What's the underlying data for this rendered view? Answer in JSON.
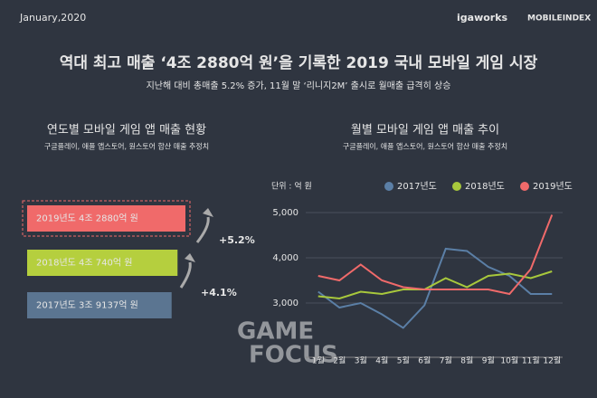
{
  "header": {
    "date": "January,2020",
    "logo_left": "igaworks",
    "logo_right": "MOBILEINDEX",
    "title": "역대 최고 매출 ‘4조 2880억 원’을 기록한 2019 국내 모바일 게임 시장",
    "subtitle": "지난해 대비 총매출 5.2% 증가, 11월 말 ‘리니지2M’ 출시로 월매출 급격히 상승"
  },
  "watermark": {
    "line1": "GAME",
    "line2": "FOCUS"
  },
  "chart_data": [
    {
      "type": "hbar",
      "title": "연도별 모바일 게임 앱 매출 현황",
      "subtitle": "구글플레이, 애플 앱스토어, 원스토어 합산 매출 추정치",
      "values": [
        42880,
        40740,
        39137
      ],
      "value_labels": [
        "2019년도 4조 2880억 원",
        "2018년도 4조 740억 원",
        "2017년도 3조 9137억 원"
      ],
      "colors": [
        "#f06a6a",
        "#b5cf3e",
        "#5b7591"
      ],
      "annotations": [
        "+5.2%",
        "+4.1%"
      ]
    },
    {
      "type": "line",
      "title": "월별 모바일 게임 앱 매출 추이",
      "subtitle": "구글플레이, 애플 앱스토어, 원스토어 합산 매출 추정치",
      "unit_label": "단위 : 억 원",
      "categories": [
        "1월",
        "2월",
        "3월",
        "4월",
        "5월",
        "6월",
        "7월",
        "8월",
        "9월",
        "10월",
        "11월",
        "12월"
      ],
      "series": [
        {
          "name": "2017년도",
          "color": "#5b7fa6",
          "values": [
            3250,
            2900,
            3000,
            2750,
            2450,
            2950,
            4200,
            4150,
            3800,
            3600,
            3200,
            3200
          ]
        },
        {
          "name": "2018년도",
          "color": "#a8c83c",
          "values": [
            3150,
            3100,
            3250,
            3200,
            3300,
            3300,
            3550,
            3350,
            3600,
            3650,
            3550,
            3700
          ]
        },
        {
          "name": "2019년도",
          "color": "#f06a6a",
          "values": [
            3600,
            3500,
            3850,
            3500,
            3350,
            3300,
            3300,
            3300,
            3300,
            3200,
            3750,
            4950
          ]
        }
      ],
      "ylim": [
        1800,
        5700
      ],
      "yticks": [
        {
          "value": 3000,
          "label": "3,000"
        },
        {
          "value": 4000,
          "label": "4,000"
        },
        {
          "value": 5000,
          "label": "5,000"
        }
      ],
      "grid": true
    }
  ]
}
